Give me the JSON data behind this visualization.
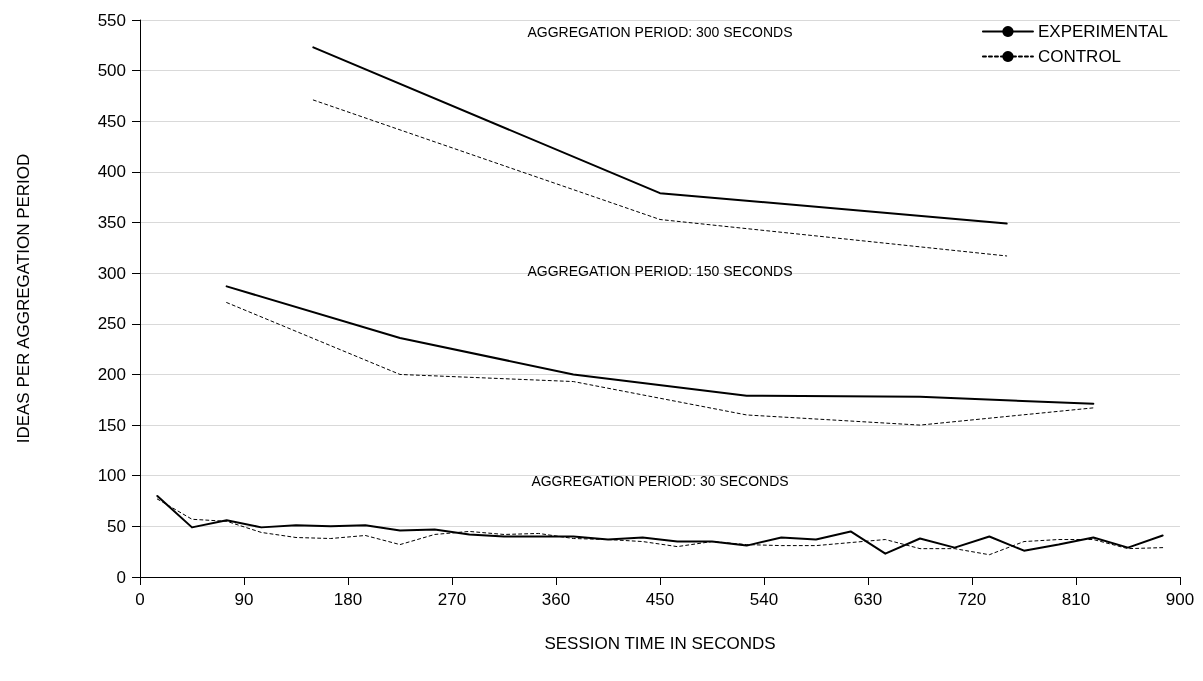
{
  "chart_data": {
    "type": "line",
    "xlabel": "SESSION TIME IN SECONDS",
    "ylabel": "IDEAS PER AGGREGATION PERIOD",
    "xlim": [
      0,
      900
    ],
    "xticks": [
      0,
      90,
      180,
      270,
      360,
      450,
      540,
      630,
      720,
      810,
      900
    ],
    "ylim": [
      0,
      550
    ],
    "yticks": [
      0,
      50,
      100,
      150,
      200,
      250,
      300,
      350,
      400,
      450,
      500,
      550
    ],
    "grid": "y",
    "legend": "top right",
    "marker": "none",
    "annotations": [
      "AGGREGATION PERIOD: 300 SECONDS",
      "AGGREGATION PERIOD: 150 SECONDS",
      "AGGREGATION PERIOD: 30 SECONDS"
    ],
    "series": [
      {
        "name": "EXPERIMENTAL",
        "color": "#000000",
        "line_style": "solid",
        "x": [
          150,
          450,
          750
        ],
        "values": [
          523,
          379,
          349
        ]
      },
      {
        "name": "CONTROL",
        "color": "#000000",
        "line_style": "dashed",
        "x": [
          150,
          450,
          750
        ],
        "values": [
          471,
          353,
          317
        ]
      },
      {
        "color": "#000000",
        "line_style": "solid",
        "x": [
          75,
          225,
          375,
          525,
          675,
          825
        ],
        "values": [
          287,
          236,
          200,
          179,
          178,
          171
        ]
      },
      {
        "color": "#000000",
        "line_style": "dashed",
        "x": [
          75,
          225,
          375,
          525,
          675,
          825
        ],
        "values": [
          271,
          200,
          193,
          160,
          150,
          167
        ]
      },
      {
        "color": "#000000",
        "line_style": "solid",
        "x": [
          15,
          45,
          75,
          105,
          135,
          165,
          195,
          225,
          255,
          285,
          315,
          345,
          375,
          405,
          435,
          465,
          495,
          525,
          555,
          585,
          615,
          645,
          675,
          705,
          735,
          765,
          795,
          825,
          855,
          885
        ],
        "values": [
          80,
          49,
          56,
          49,
          51,
          50,
          51,
          46,
          47,
          42,
          40,
          40,
          40,
          37,
          39,
          35,
          35,
          31,
          39,
          37,
          45,
          23,
          38,
          29,
          40,
          26,
          32,
          39,
          29,
          41
        ]
      },
      {
        "color": "#000000",
        "line_style": "dashed",
        "x": [
          15,
          45,
          75,
          105,
          135,
          165,
          195,
          225,
          255,
          285,
          315,
          345,
          375,
          405,
          435,
          465,
          495,
          525,
          555,
          585,
          615,
          645,
          675,
          705,
          735,
          765,
          795,
          825,
          855,
          885
        ],
        "values": [
          77,
          57,
          55,
          44,
          39,
          38,
          41,
          32,
          42,
          45,
          42,
          43,
          38,
          37,
          35,
          30,
          35,
          32,
          31,
          31,
          34,
          37,
          28,
          28,
          22,
          35,
          37,
          37,
          28,
          29
        ]
      }
    ]
  }
}
